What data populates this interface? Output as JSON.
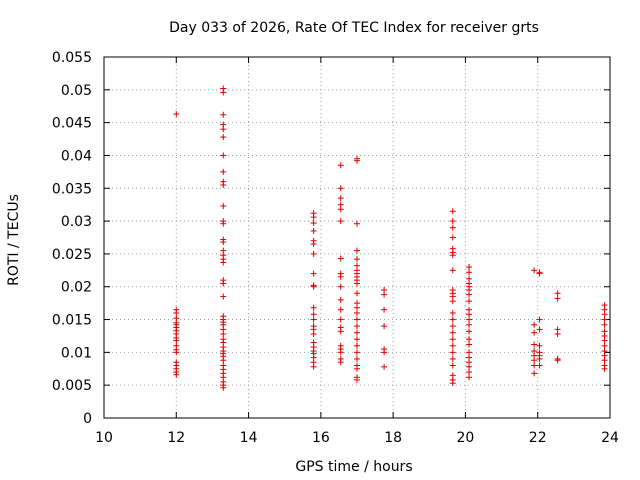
{
  "chart_data": {
    "type": "scatter",
    "title": "Day 033 of 2026, Rate Of TEC Index for receiver grts",
    "xlabel": "GPS time / hours",
    "ylabel": "ROTI / TECUs",
    "xlim": [
      10,
      24
    ],
    "ylim": [
      0,
      0.055
    ],
    "x_ticks": [
      "10",
      "12",
      "14",
      "16",
      "18",
      "20",
      "22",
      "24"
    ],
    "y_ticks": [
      "0",
      "0.005",
      "0.01",
      "0.015",
      "0.02",
      "0.025",
      "0.03",
      "0.035",
      "0.04",
      "0.045",
      "0.05",
      "0.055"
    ],
    "grid": true,
    "marker": "+",
    "color": "#e00000",
    "points": [
      [
        12.0,
        0.0463
      ],
      [
        12.0,
        0.0165
      ],
      [
        12.0,
        0.016
      ],
      [
        12.0,
        0.0152
      ],
      [
        12.0,
        0.0145
      ],
      [
        12.0,
        0.0142
      ],
      [
        12.0,
        0.0138
      ],
      [
        12.0,
        0.0133
      ],
      [
        12.0,
        0.0128
      ],
      [
        12.0,
        0.0122
      ],
      [
        12.0,
        0.0118
      ],
      [
        12.0,
        0.011
      ],
      [
        12.0,
        0.0104
      ],
      [
        12.0,
        0.01
      ],
      [
        12.0,
        0.0085
      ],
      [
        12.0,
        0.008
      ],
      [
        12.0,
        0.0075
      ],
      [
        12.0,
        0.007
      ],
      [
        12.0,
        0.0066
      ],
      [
        13.3,
        0.0502
      ],
      [
        13.3,
        0.0496
      ],
      [
        13.3,
        0.0462
      ],
      [
        13.3,
        0.0447
      ],
      [
        13.3,
        0.044
      ],
      [
        13.3,
        0.0428
      ],
      [
        13.3,
        0.04
      ],
      [
        13.3,
        0.0375
      ],
      [
        13.3,
        0.036
      ],
      [
        13.3,
        0.0355
      ],
      [
        13.3,
        0.0323
      ],
      [
        13.3,
        0.03
      ],
      [
        13.3,
        0.0296
      ],
      [
        13.3,
        0.0272
      ],
      [
        13.3,
        0.0268
      ],
      [
        13.3,
        0.0255
      ],
      [
        13.3,
        0.0248
      ],
      [
        13.3,
        0.0242
      ],
      [
        13.3,
        0.0237
      ],
      [
        13.3,
        0.021
      ],
      [
        13.3,
        0.0205
      ],
      [
        13.3,
        0.0185
      ],
      [
        13.3,
        0.0155
      ],
      [
        13.3,
        0.015
      ],
      [
        13.3,
        0.0146
      ],
      [
        13.3,
        0.0142
      ],
      [
        13.3,
        0.0135
      ],
      [
        13.3,
        0.0128
      ],
      [
        13.3,
        0.012
      ],
      [
        13.3,
        0.0115
      ],
      [
        13.3,
        0.0108
      ],
      [
        13.3,
        0.0102
      ],
      [
        13.3,
        0.0098
      ],
      [
        13.3,
        0.0094
      ],
      [
        13.3,
        0.0088
      ],
      [
        13.3,
        0.008
      ],
      [
        13.3,
        0.0074
      ],
      [
        13.3,
        0.0068
      ],
      [
        13.3,
        0.0062
      ],
      [
        13.3,
        0.0055
      ],
      [
        13.3,
        0.005
      ],
      [
        13.3,
        0.0046
      ],
      [
        15.8,
        0.0312
      ],
      [
        15.8,
        0.0306
      ],
      [
        15.8,
        0.0297
      ],
      [
        15.8,
        0.0285
      ],
      [
        15.8,
        0.027
      ],
      [
        15.8,
        0.0265
      ],
      [
        15.8,
        0.025
      ],
      [
        15.8,
        0.022
      ],
      [
        15.8,
        0.0202
      ],
      [
        15.8,
        0.02
      ],
      [
        15.8,
        0.0168
      ],
      [
        15.8,
        0.0158
      ],
      [
        15.8,
        0.015
      ],
      [
        15.8,
        0.014
      ],
      [
        15.8,
        0.0135
      ],
      [
        15.8,
        0.0128
      ],
      [
        15.8,
        0.0115
      ],
      [
        15.8,
        0.0108
      ],
      [
        15.8,
        0.0102
      ],
      [
        15.8,
        0.0098
      ],
      [
        15.8,
        0.0092
      ],
      [
        15.8,
        0.0085
      ],
      [
        15.8,
        0.0078
      ],
      [
        16.55,
        0.0385
      ],
      [
        16.55,
        0.035
      ],
      [
        16.55,
        0.0335
      ],
      [
        16.55,
        0.0325
      ],
      [
        16.55,
        0.0318
      ],
      [
        16.55,
        0.03
      ],
      [
        16.55,
        0.0243
      ],
      [
        16.55,
        0.022
      ],
      [
        16.55,
        0.0215
      ],
      [
        16.55,
        0.02
      ],
      [
        16.55,
        0.018
      ],
      [
        16.55,
        0.0165
      ],
      [
        16.55,
        0.015
      ],
      [
        16.55,
        0.0138
      ],
      [
        16.55,
        0.0132
      ],
      [
        16.55,
        0.011
      ],
      [
        16.55,
        0.0105
      ],
      [
        16.55,
        0.01
      ],
      [
        16.55,
        0.009
      ],
      [
        16.55,
        0.0085
      ],
      [
        17.0,
        0.0395
      ],
      [
        17.0,
        0.0392
      ],
      [
        17.0,
        0.0296
      ],
      [
        17.0,
        0.0255
      ],
      [
        17.0,
        0.0242
      ],
      [
        17.0,
        0.0232
      ],
      [
        17.0,
        0.0225
      ],
      [
        17.0,
        0.022
      ],
      [
        17.0,
        0.0215
      ],
      [
        17.0,
        0.021
      ],
      [
        17.0,
        0.0205
      ],
      [
        17.0,
        0.019
      ],
      [
        17.0,
        0.0175
      ],
      [
        17.0,
        0.0168
      ],
      [
        17.0,
        0.016
      ],
      [
        17.0,
        0.015
      ],
      [
        17.0,
        0.014
      ],
      [
        17.0,
        0.013
      ],
      [
        17.0,
        0.012
      ],
      [
        17.0,
        0.011
      ],
      [
        17.0,
        0.01
      ],
      [
        17.0,
        0.009
      ],
      [
        17.0,
        0.008
      ],
      [
        17.0,
        0.0075
      ],
      [
        17.0,
        0.0062
      ],
      [
        17.0,
        0.0058
      ],
      [
        17.75,
        0.0195
      ],
      [
        17.75,
        0.0188
      ],
      [
        17.75,
        0.0165
      ],
      [
        17.75,
        0.014
      ],
      [
        17.75,
        0.0105
      ],
      [
        17.75,
        0.01
      ],
      [
        17.75,
        0.0078
      ],
      [
        19.65,
        0.0315
      ],
      [
        19.65,
        0.03
      ],
      [
        19.65,
        0.029
      ],
      [
        19.65,
        0.0275
      ],
      [
        19.65,
        0.0258
      ],
      [
        19.65,
        0.0252
      ],
      [
        19.65,
        0.0248
      ],
      [
        19.65,
        0.0225
      ],
      [
        19.65,
        0.0195
      ],
      [
        19.65,
        0.019
      ],
      [
        19.65,
        0.0185
      ],
      [
        19.65,
        0.0178
      ],
      [
        19.65,
        0.016
      ],
      [
        19.65,
        0.015
      ],
      [
        19.65,
        0.014
      ],
      [
        19.65,
        0.013
      ],
      [
        19.65,
        0.012
      ],
      [
        19.65,
        0.011
      ],
      [
        19.65,
        0.01
      ],
      [
        19.65,
        0.009
      ],
      [
        19.65,
        0.008
      ],
      [
        19.65,
        0.0065
      ],
      [
        19.65,
        0.0058
      ],
      [
        19.65,
        0.0053
      ],
      [
        20.1,
        0.023
      ],
      [
        20.1,
        0.0222
      ],
      [
        20.1,
        0.0212
      ],
      [
        20.1,
        0.0205
      ],
      [
        20.1,
        0.02
      ],
      [
        20.1,
        0.0195
      ],
      [
        20.1,
        0.0188
      ],
      [
        20.1,
        0.0178
      ],
      [
        20.1,
        0.0165
      ],
      [
        20.1,
        0.0158
      ],
      [
        20.1,
        0.015
      ],
      [
        20.1,
        0.0142
      ],
      [
        20.1,
        0.0132
      ],
      [
        20.1,
        0.012
      ],
      [
        20.1,
        0.0112
      ],
      [
        20.1,
        0.01
      ],
      [
        20.1,
        0.0092
      ],
      [
        20.1,
        0.0085
      ],
      [
        20.1,
        0.0078
      ],
      [
        20.1,
        0.007
      ],
      [
        20.1,
        0.0062
      ],
      [
        21.9,
        0.0225
      ],
      [
        21.9,
        0.0142
      ],
      [
        21.9,
        0.013
      ],
      [
        21.9,
        0.0112
      ],
      [
        21.9,
        0.0102
      ],
      [
        21.9,
        0.0095
      ],
      [
        21.9,
        0.0088
      ],
      [
        21.9,
        0.008
      ],
      [
        21.9,
        0.0068
      ],
      [
        22.05,
        0.0222
      ],
      [
        22.05,
        0.022
      ],
      [
        22.05,
        0.015
      ],
      [
        22.05,
        0.0135
      ],
      [
        22.05,
        0.011
      ],
      [
        22.05,
        0.01
      ],
      [
        22.05,
        0.0095
      ],
      [
        22.05,
        0.009
      ],
      [
        22.05,
        0.008
      ],
      [
        22.55,
        0.019
      ],
      [
        22.55,
        0.0182
      ],
      [
        22.55,
        0.0135
      ],
      [
        22.55,
        0.0128
      ],
      [
        22.55,
        0.009
      ],
      [
        22.55,
        0.0088
      ],
      [
        23.85,
        0.0172
      ],
      [
        23.85,
        0.0165
      ],
      [
        23.85,
        0.0158
      ],
      [
        23.85,
        0.015
      ],
      [
        23.85,
        0.0142
      ],
      [
        23.85,
        0.0132
      ],
      [
        23.85,
        0.0125
      ],
      [
        23.85,
        0.0118
      ],
      [
        23.85,
        0.011
      ],
      [
        23.85,
        0.0102
      ],
      [
        23.85,
        0.0095
      ],
      [
        23.85,
        0.0088
      ],
      [
        23.85,
        0.008
      ],
      [
        23.85,
        0.0075
      ]
    ]
  }
}
